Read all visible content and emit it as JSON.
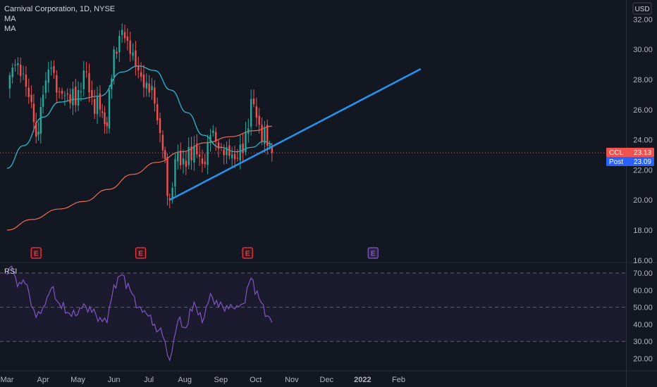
{
  "header": {
    "symbol_title": "Carnival Corporation, 1D, NYSE",
    "indicator_1": "MA",
    "indicator_2": "MA",
    "currency": "USD"
  },
  "price_tags": [
    {
      "label": "CCL",
      "value": "23.13",
      "color": "#ef5350"
    },
    {
      "label": "Post",
      "value": "23.09",
      "color": "#2962ff"
    }
  ],
  "rsi_label": "RSI",
  "colors": {
    "background": "#131722",
    "up_candle": "#26a69a",
    "down_candle": "#ef5350",
    "ma_fast": "#26c6da",
    "ma_slow": "#ef6c57",
    "trendline": "#2196f3",
    "rsi_line": "#7e57c2",
    "earnings_red": "#f23645",
    "earnings_purple": "#7e57c2"
  },
  "chart_data": [
    {
      "type": "candlestick",
      "title": "Carnival Corporation, 1D, NYSE",
      "x_ticks": [
        "Mar",
        "Apr",
        "May",
        "Jun",
        "Jul",
        "Aug",
        "Sep",
        "Oct",
        "Nov",
        "Dec",
        "2022",
        "Feb"
      ],
      "y_ticks": [
        "32.00",
        "30.00",
        "28.00",
        "26.00",
        "24.00",
        "22.00",
        "20.00",
        "18.00",
        "16.00"
      ],
      "ylim": [
        16,
        32.8
      ],
      "grid": false,
      "price_closes": [
        {
          "x": "Mar 1",
          "y": 27.4
        },
        {
          "x": "Mar 8",
          "y": 29.0
        },
        {
          "x": "Mar 15",
          "y": 28.4
        },
        {
          "x": "Mar 22",
          "y": 26.5
        },
        {
          "x": "Mar 26",
          "y": 24.2
        },
        {
          "x": "Apr 1",
          "y": 27.0
        },
        {
          "x": "Apr 8",
          "y": 28.8
        },
        {
          "x": "Apr 15",
          "y": 27.2
        },
        {
          "x": "Apr 22",
          "y": 27.0
        },
        {
          "x": "Apr 29",
          "y": 26.3
        },
        {
          "x": "May 6",
          "y": 28.6
        },
        {
          "x": "May 13",
          "y": 26.8
        },
        {
          "x": "May 20",
          "y": 26.0
        },
        {
          "x": "May 26",
          "y": 24.9
        },
        {
          "x": "Jun 1",
          "y": 30.0
        },
        {
          "x": "Jun 8",
          "y": 31.3
        },
        {
          "x": "Jun 15",
          "y": 29.7
        },
        {
          "x": "Jun 22",
          "y": 28.6
        },
        {
          "x": "Jun 29",
          "y": 27.8
        },
        {
          "x": "Jul 6",
          "y": 26.4
        },
        {
          "x": "Jul 13",
          "y": 23.3
        },
        {
          "x": "Jul 19",
          "y": 20.0
        },
        {
          "x": "Jul 26",
          "y": 23.2
        },
        {
          "x": "Aug 2",
          "y": 22.2
        },
        {
          "x": "Aug 9",
          "y": 23.6
        },
        {
          "x": "Aug 16",
          "y": 22.4
        },
        {
          "x": "Aug 23",
          "y": 24.3
        },
        {
          "x": "Aug 30",
          "y": 23.4
        },
        {
          "x": "Sep 6",
          "y": 23.5
        },
        {
          "x": "Sep 13",
          "y": 22.7
        },
        {
          "x": "Sep 20",
          "y": 23.1
        },
        {
          "x": "Sep 27",
          "y": 26.7
        },
        {
          "x": "Oct 4",
          "y": 25.0
        },
        {
          "x": "Oct 11",
          "y": 23.6
        },
        {
          "x": "Oct 15",
          "y": 23.13
        }
      ],
      "ma_fast": [
        {
          "x": "Mar 1",
          "y": 22.1
        },
        {
          "x": "Mar 15",
          "y": 23.6
        },
        {
          "x": "Apr 1",
          "y": 25.5
        },
        {
          "x": "Apr 15",
          "y": 26.5
        },
        {
          "x": "May 1",
          "y": 26.7
        },
        {
          "x": "May 20",
          "y": 26.9
        },
        {
          "x": "Jun 8",
          "y": 28.5
        },
        {
          "x": "Jun 22",
          "y": 28.9
        },
        {
          "x": "Jul 6",
          "y": 28.6
        },
        {
          "x": "Jul 20",
          "y": 27.3
        },
        {
          "x": "Aug 3",
          "y": 25.8
        },
        {
          "x": "Aug 17",
          "y": 24.3
        },
        {
          "x": "Aug 31",
          "y": 23.5
        },
        {
          "x": "Sep 14",
          "y": 23.2
        },
        {
          "x": "Sep 28",
          "y": 23.5
        },
        {
          "x": "Oct 8",
          "y": 23.9
        },
        {
          "x": "Oct 15",
          "y": 23.7
        }
      ],
      "ma_slow": [
        {
          "x": "Mar 1",
          "y": 18.0
        },
        {
          "x": "Mar 22",
          "y": 18.7
        },
        {
          "x": "Apr 15",
          "y": 19.4
        },
        {
          "x": "May 6",
          "y": 19.9
        },
        {
          "x": "May 27",
          "y": 20.7
        },
        {
          "x": "Jun 17",
          "y": 21.7
        },
        {
          "x": "Jul 8",
          "y": 22.5
        },
        {
          "x": "Jul 29",
          "y": 23.2
        },
        {
          "x": "Aug 19",
          "y": 23.8
        },
        {
          "x": "Sep 9",
          "y": 24.2
        },
        {
          "x": "Sep 30",
          "y": 24.6
        },
        {
          "x": "Oct 15",
          "y": 24.9
        }
      ],
      "trendline": [
        {
          "x": "Jul 19",
          "y": 20.0
        },
        {
          "x": "Feb 20 2022",
          "y": 28.7
        }
      ],
      "earnings_markers": [
        {
          "x": "Mar 26",
          "label": "E",
          "status": "reported"
        },
        {
          "x": "Jun 24",
          "label": "E",
          "status": "reported"
        },
        {
          "x": "Sep 24",
          "label": "E",
          "status": "reported"
        },
        {
          "x": "Jan 10 2022",
          "label": "E",
          "status": "upcoming"
        }
      ],
      "current_price": 23.13,
      "post_market_price": 23.09
    },
    {
      "type": "line",
      "title": "RSI",
      "y_ticks": [
        "70.00",
        "60.00",
        "50.00",
        "40.00",
        "30.00",
        "20.00"
      ],
      "ylim": [
        12,
        76
      ],
      "bands": [
        30,
        50,
        70
      ],
      "values": [
        {
          "x": "Mar 1",
          "y": 69
        },
        {
          "x": "Mar 5",
          "y": 74
        },
        {
          "x": "Mar 10",
          "y": 62
        },
        {
          "x": "Mar 15",
          "y": 66
        },
        {
          "x": "Mar 20",
          "y": 58
        },
        {
          "x": "Mar 26",
          "y": 44
        },
        {
          "x": "Apr 1",
          "y": 50
        },
        {
          "x": "Apr 8",
          "y": 61
        },
        {
          "x": "Apr 15",
          "y": 52
        },
        {
          "x": "Apr 22",
          "y": 47
        },
        {
          "x": "Apr 29",
          "y": 45
        },
        {
          "x": "May 6",
          "y": 52
        },
        {
          "x": "May 13",
          "y": 47
        },
        {
          "x": "May 20",
          "y": 44
        },
        {
          "x": "May 26",
          "y": 41
        },
        {
          "x": "Jun 1",
          "y": 63
        },
        {
          "x": "Jun 8",
          "y": 69
        },
        {
          "x": "Jun 15",
          "y": 60
        },
        {
          "x": "Jun 22",
          "y": 50
        },
        {
          "x": "Jun 29",
          "y": 46
        },
        {
          "x": "Jul 6",
          "y": 40
        },
        {
          "x": "Jul 13",
          "y": 33
        },
        {
          "x": "Jul 19",
          "y": 19
        },
        {
          "x": "Jul 26",
          "y": 42
        },
        {
          "x": "Aug 2",
          "y": 38
        },
        {
          "x": "Aug 9",
          "y": 53
        },
        {
          "x": "Aug 16",
          "y": 41
        },
        {
          "x": "Aug 23",
          "y": 58
        },
        {
          "x": "Aug 30",
          "y": 50
        },
        {
          "x": "Sep 6",
          "y": 51
        },
        {
          "x": "Sep 13",
          "y": 49
        },
        {
          "x": "Sep 20",
          "y": 52
        },
        {
          "x": "Sep 27",
          "y": 67
        },
        {
          "x": "Oct 4",
          "y": 55
        },
        {
          "x": "Oct 11",
          "y": 45
        },
        {
          "x": "Oct 15",
          "y": 41
        }
      ]
    }
  ]
}
